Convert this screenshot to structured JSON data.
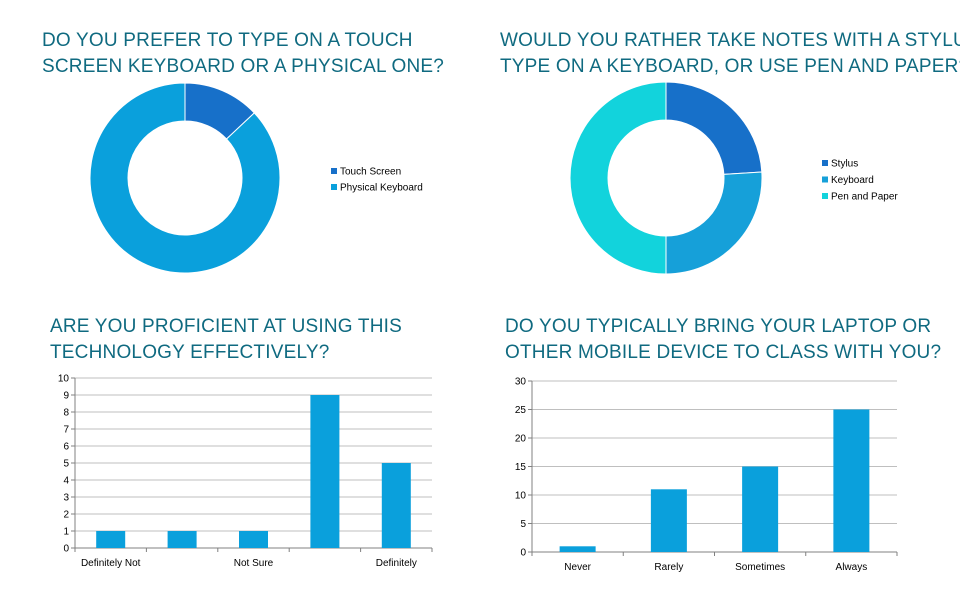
{
  "colors": {
    "title": "#0f6a80",
    "stylus": "#1770c9",
    "keyboard": "#16a0d9",
    "pen": "#12d3dc",
    "touch": "#1770c9",
    "physical": "#0aa0dc",
    "bar": "#0aa0dc",
    "grid": "#bfbfbf",
    "axis": "#808080"
  },
  "chart_data": [
    {
      "type": "pie",
      "donut": true,
      "title_lines": [
        "DO YOU PREFER TO TYPE ON A TOUCH",
        "SCREEN KEYBOARD OR A PHYSICAL ONE?"
      ],
      "legend": "right",
      "slices": [
        {
          "label": "Touch Screen",
          "value": 13,
          "color": "#1770c9"
        },
        {
          "label": "Physical Keyboard",
          "value": 87,
          "color": "#0aa0dc"
        }
      ]
    },
    {
      "type": "pie",
      "donut": true,
      "title_lines": [
        "WOULD YOU RATHER TAKE NOTES WITH A STYLUS,",
        "TYPE ON A KEYBOARD, OR USE PEN AND PAPER?"
      ],
      "legend": "right",
      "slices": [
        {
          "label": "Stylus",
          "value": 24,
          "color": "#1770c9"
        },
        {
          "label": "Keyboard",
          "value": 26,
          "color": "#16a0d9"
        },
        {
          "label": "Pen and Paper",
          "value": 50,
          "color": "#12d3dc"
        }
      ]
    },
    {
      "type": "bar",
      "title_lines": [
        "ARE YOU PROFICIENT AT USING THIS",
        "TECHNOLOGY EFFECTIVELY?"
      ],
      "categories": [
        "Definitely Not",
        "",
        "Not Sure",
        "",
        "Definitely"
      ],
      "values": [
        1,
        1,
        1,
        9,
        5
      ],
      "ylim": [
        0,
        10
      ],
      "yticks": [
        "0",
        "1",
        "2",
        "3",
        "4",
        "5",
        "6",
        "7",
        "8",
        "9",
        "10"
      ],
      "grid": true
    },
    {
      "type": "bar",
      "title_lines": [
        "DO YOU TYPICALLY BRING YOUR LAPTOP OR",
        "OTHER MOBILE DEVICE TO CLASS WITH YOU?"
      ],
      "categories": [
        "Never",
        "Rarely",
        "Sometimes",
        "Always"
      ],
      "values": [
        1,
        11,
        15,
        25
      ],
      "ylim": [
        0,
        30
      ],
      "yticks": [
        "0",
        "5",
        "10",
        "15",
        "20",
        "25",
        "30"
      ],
      "grid": true
    }
  ]
}
